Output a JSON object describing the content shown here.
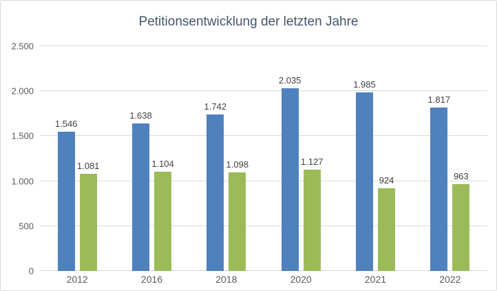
{
  "title": "Petitionsentwicklung der letzten Jahre",
  "colors": {
    "series_blue": "#4F81BD",
    "series_green": "#9BBB59",
    "gridline": "#D9D9D9",
    "border": "#D9D9D9",
    "title_text": "#44546A",
    "axis_text": "#595959",
    "data_label_text": "#404040",
    "background": "#FFFFFF"
  },
  "chart_data": {
    "type": "bar",
    "title": "Petitionsentwicklung der letzten Jahre",
    "categories": [
      "2012",
      "2016",
      "2018",
      "2020",
      "2021",
      "2022"
    ],
    "series": [
      {
        "name": "series-1-blue",
        "color": "#4F81BD",
        "values": [
          1546,
          1638,
          1742,
          2035,
          1985,
          1817
        ],
        "labels": [
          "1.546",
          "1.638",
          "1.742",
          "2.035",
          "1.985",
          "1.817"
        ]
      },
      {
        "name": "series-2-green",
        "color": "#9BBB59",
        "values": [
          1081,
          1104,
          1098,
          1127,
          924,
          963
        ],
        "labels": [
          "1.081",
          "1.104",
          "1.098",
          "1.127",
          "924",
          "963"
        ]
      }
    ],
    "xlabel": "",
    "ylabel": "",
    "ylim": [
      0,
      2500
    ],
    "yticks": [
      {
        "value": 0,
        "label": "0"
      },
      {
        "value": 500,
        "label": "500"
      },
      {
        "value": 1000,
        "label": "1.000"
      },
      {
        "value": 1500,
        "label": "1.500"
      },
      {
        "value": 2000,
        "label": "2.000"
      },
      {
        "value": 2500,
        "label": "2.500"
      }
    ],
    "grid": true,
    "legend": "none"
  }
}
